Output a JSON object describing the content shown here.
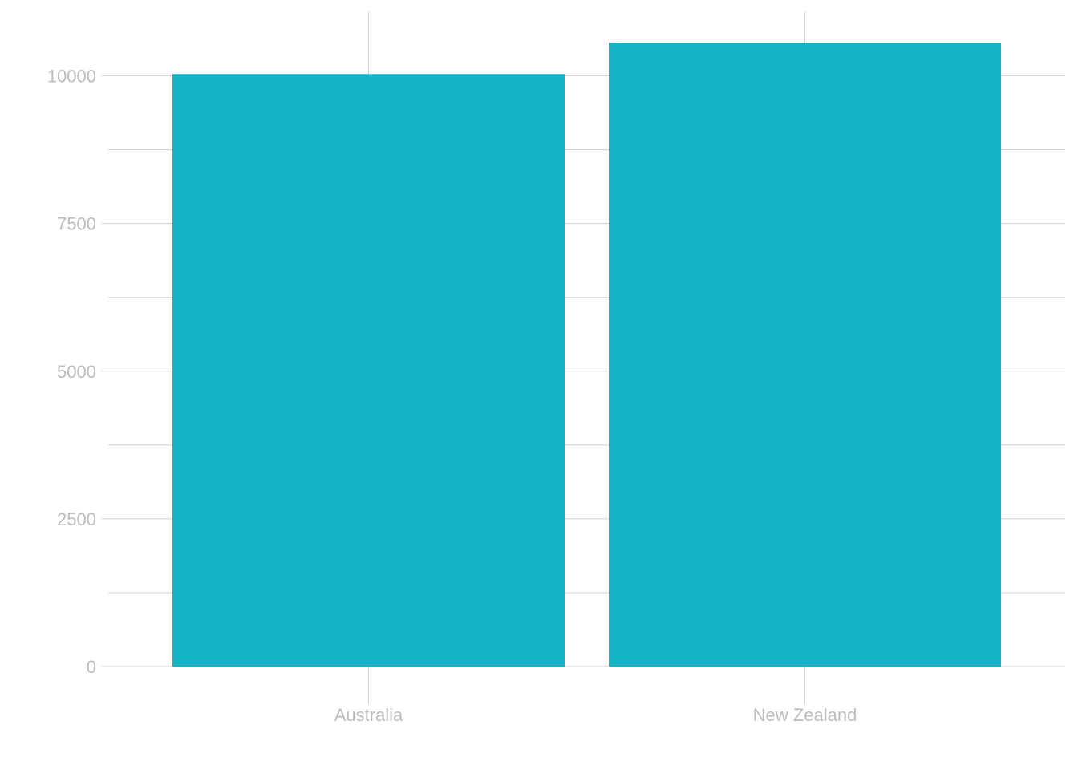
{
  "chart_data": {
    "type": "bar",
    "categories": [
      "Australia",
      "New Zealand"
    ],
    "values": [
      10030,
      10560
    ],
    "title": "",
    "xlabel": "",
    "ylabel": "",
    "ylim": [
      0,
      11000
    ],
    "yticks": [
      0,
      2500,
      5000,
      7500,
      10000
    ],
    "ytick_labels": [
      "0",
      "2500",
      "5000",
      "7500",
      "10000"
    ],
    "grid": true,
    "legend": "none",
    "bar_color": "#17b3c8"
  }
}
